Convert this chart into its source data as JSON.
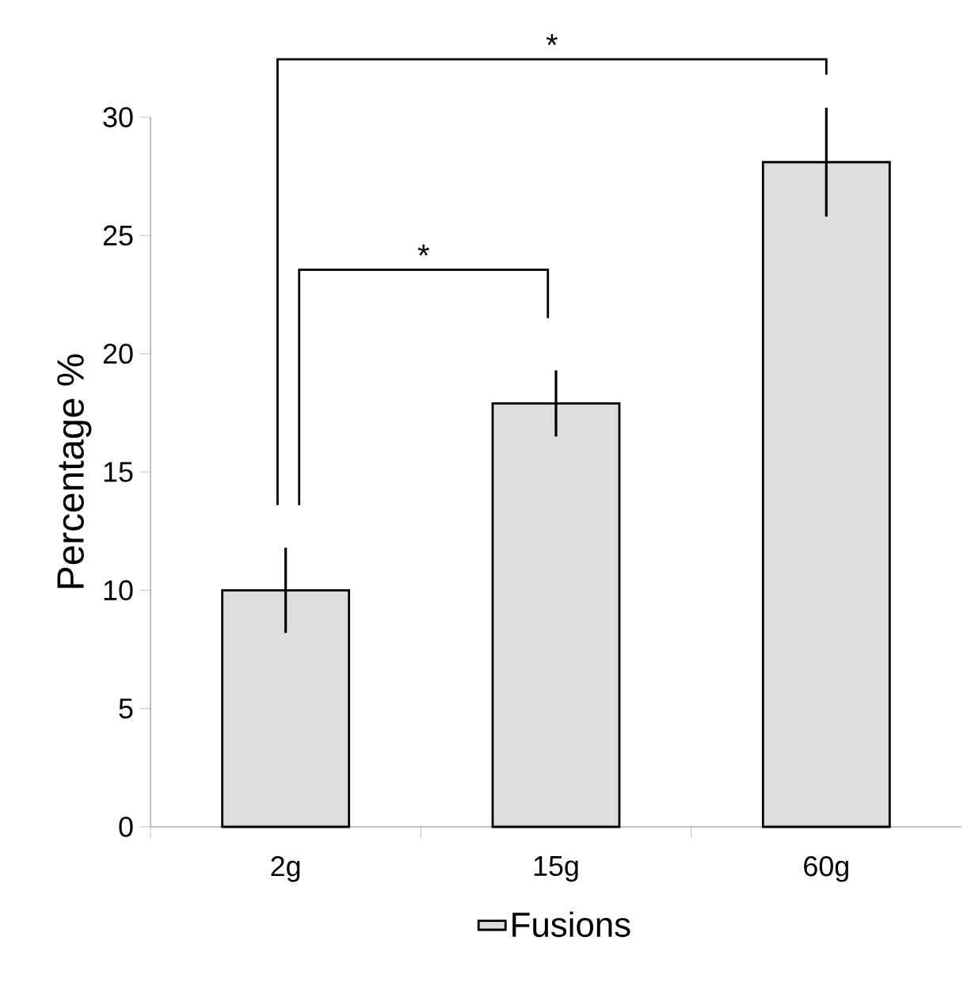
{
  "chart_data": {
    "type": "bar",
    "ylabel": "Percentage %",
    "categories": [
      "2g",
      "15g",
      "60g"
    ],
    "series": [
      {
        "name": "Fusions",
        "color": "#dddddd",
        "values": [
          10.0,
          17.9,
          28.1
        ],
        "errors": [
          1.8,
          1.4,
          2.3
        ]
      }
    ],
    "ylim": [
      0,
      30
    ],
    "yticks": [
      0,
      5,
      10,
      15,
      20,
      25,
      30
    ],
    "legend": "bottom",
    "grid": false,
    "annotations": [
      "*",
      "*"
    ]
  }
}
